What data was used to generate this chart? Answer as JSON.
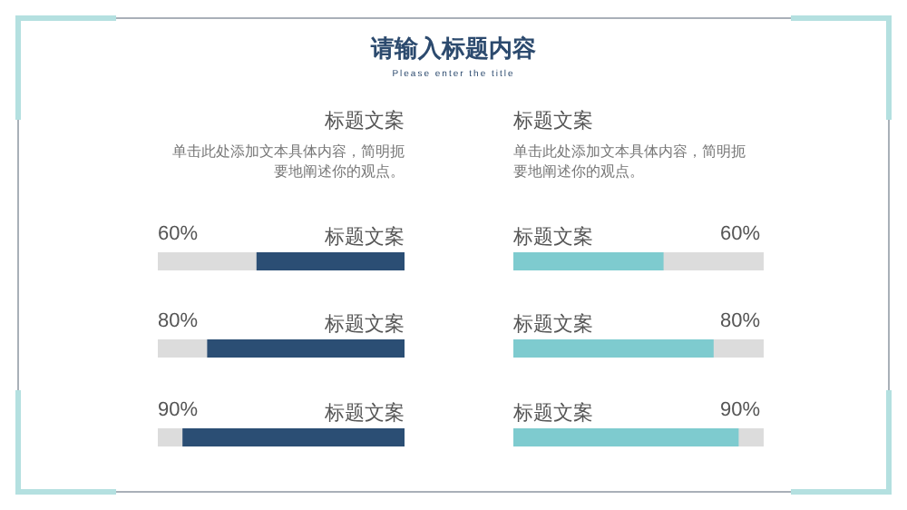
{
  "chart_data": [
    {
      "type": "other",
      "title": "请输入标题内容",
      "subtitle": "Please enter the title"
    },
    {
      "type": "bar",
      "orientation": "horizontal",
      "title": "标题文案",
      "subtitle": "单击此处添加文本具体内容，简明扼要地阐述你的观点。",
      "categories": [
        "标题文案",
        "标题文案",
        "标题文案"
      ],
      "series": [
        {
          "color": "#2b4e74",
          "values": [
            60,
            80,
            90
          ],
          "value_labels": [
            "60%",
            "80%",
            "90%"
          ]
        }
      ],
      "xlim": [
        100,
        0
      ],
      "tick_labels": "y"
    },
    {
      "type": "bar",
      "orientation": "horizontal",
      "title": "标题文案",
      "subtitle": "单击此处添加文本具体内容，简明扼要地阐述你的观点。",
      "categories": [
        "标题文案",
        "标题文案",
        "标题文案"
      ],
      "series": [
        {
          "color": "#7ecbcf",
          "values": [
            60,
            80,
            90
          ],
          "value_labels": [
            "60%",
            "80%",
            "90%"
          ]
        }
      ],
      "xlim": [
        0,
        100
      ],
      "tick_labels": "y"
    }
  ]
}
